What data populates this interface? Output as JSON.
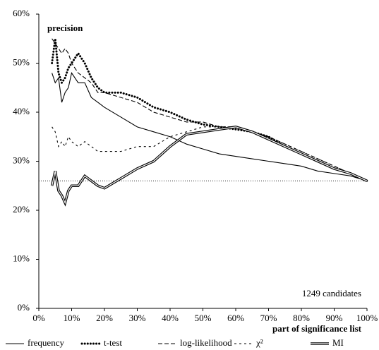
{
  "chart_data": {
    "type": "line",
    "y_label": "precision",
    "x_label": "part of significance list",
    "annotation": "1249 candidates",
    "baseline": 26,
    "x": [
      4,
      5,
      6,
      7,
      8,
      9,
      10,
      12,
      14,
      16,
      18,
      20,
      25,
      30,
      35,
      40,
      45,
      50,
      55,
      60,
      65,
      70,
      75,
      80,
      85,
      90,
      95,
      100
    ],
    "series": [
      {
        "name": "frequency",
        "color": "#000000",
        "dash": "solid",
        "values": [
          48,
          46,
          47,
          42,
          44,
          45,
          48,
          46,
          46,
          43,
          42,
          41,
          39,
          37,
          36,
          35,
          33.5,
          32.5,
          31.5,
          31,
          30.5,
          30,
          29.5,
          29,
          28,
          27.5,
          27,
          26
        ]
      },
      {
        "name": "t-test",
        "color": "#000000",
        "dash": "dotted",
        "values": [
          50,
          55,
          48,
          46,
          47,
          49,
          50,
          52,
          50,
          47,
          45,
          44,
          44,
          43,
          41,
          40,
          38.5,
          37.5,
          37,
          36.5,
          36,
          35,
          33,
          31.5,
          30,
          28.5,
          27.5,
          26
        ]
      },
      {
        "name": "log-likelihood",
        "color": "#000000",
        "dash": "dashed",
        "values": [
          55,
          54,
          53,
          52,
          53,
          52,
          50,
          48,
          47,
          46,
          44,
          44,
          43,
          42,
          40,
          39,
          38,
          38,
          37,
          37,
          36,
          35,
          33.5,
          32,
          30.5,
          29,
          27.5,
          26
        ]
      },
      {
        "name": "χ²",
        "color": "#000000",
        "dash": "shortdash",
        "values": [
          37,
          36,
          33,
          34,
          33,
          35,
          34,
          33,
          34,
          33,
          32,
          32,
          32,
          33,
          33,
          35,
          36,
          37,
          37,
          37,
          36,
          35,
          33.5,
          32,
          30.5,
          29,
          27.5,
          26
        ]
      },
      {
        "name": "MI",
        "color": "#000000",
        "dash": "double",
        "values": [
          25,
          28,
          24,
          23,
          21.5,
          24,
          25,
          25,
          27,
          26,
          25,
          24.5,
          26.5,
          28.5,
          30,
          33,
          35.5,
          36,
          36.5,
          37,
          36,
          34.5,
          33,
          31.5,
          30,
          28.5,
          27.5,
          26
        ]
      }
    ],
    "xlim": [
      0,
      100
    ],
    "ylim": [
      0,
      60
    ],
    "xticks": [
      {
        "value": 0,
        "label": "0%"
      },
      {
        "value": 10,
        "label": "10%"
      },
      {
        "value": 20,
        "label": "20%"
      },
      {
        "value": 30,
        "label": "30%"
      },
      {
        "value": 40,
        "label": "40%"
      },
      {
        "value": 50,
        "label": "50%"
      },
      {
        "value": 60,
        "label": "60%"
      },
      {
        "value": 70,
        "label": "70%"
      },
      {
        "value": 80,
        "label": "80%"
      },
      {
        "value": 90,
        "label": "90%"
      },
      {
        "value": 100,
        "label": "100%"
      }
    ],
    "yticks": [
      {
        "value": 0,
        "label": "0%"
      },
      {
        "value": 10,
        "label": "10%"
      },
      {
        "value": 20,
        "label": "20%"
      },
      {
        "value": 30,
        "label": "30%"
      },
      {
        "value": 40,
        "label": "40%"
      },
      {
        "value": 50,
        "label": "50%"
      },
      {
        "value": 60,
        "label": "60%"
      }
    ],
    "grid": false
  }
}
